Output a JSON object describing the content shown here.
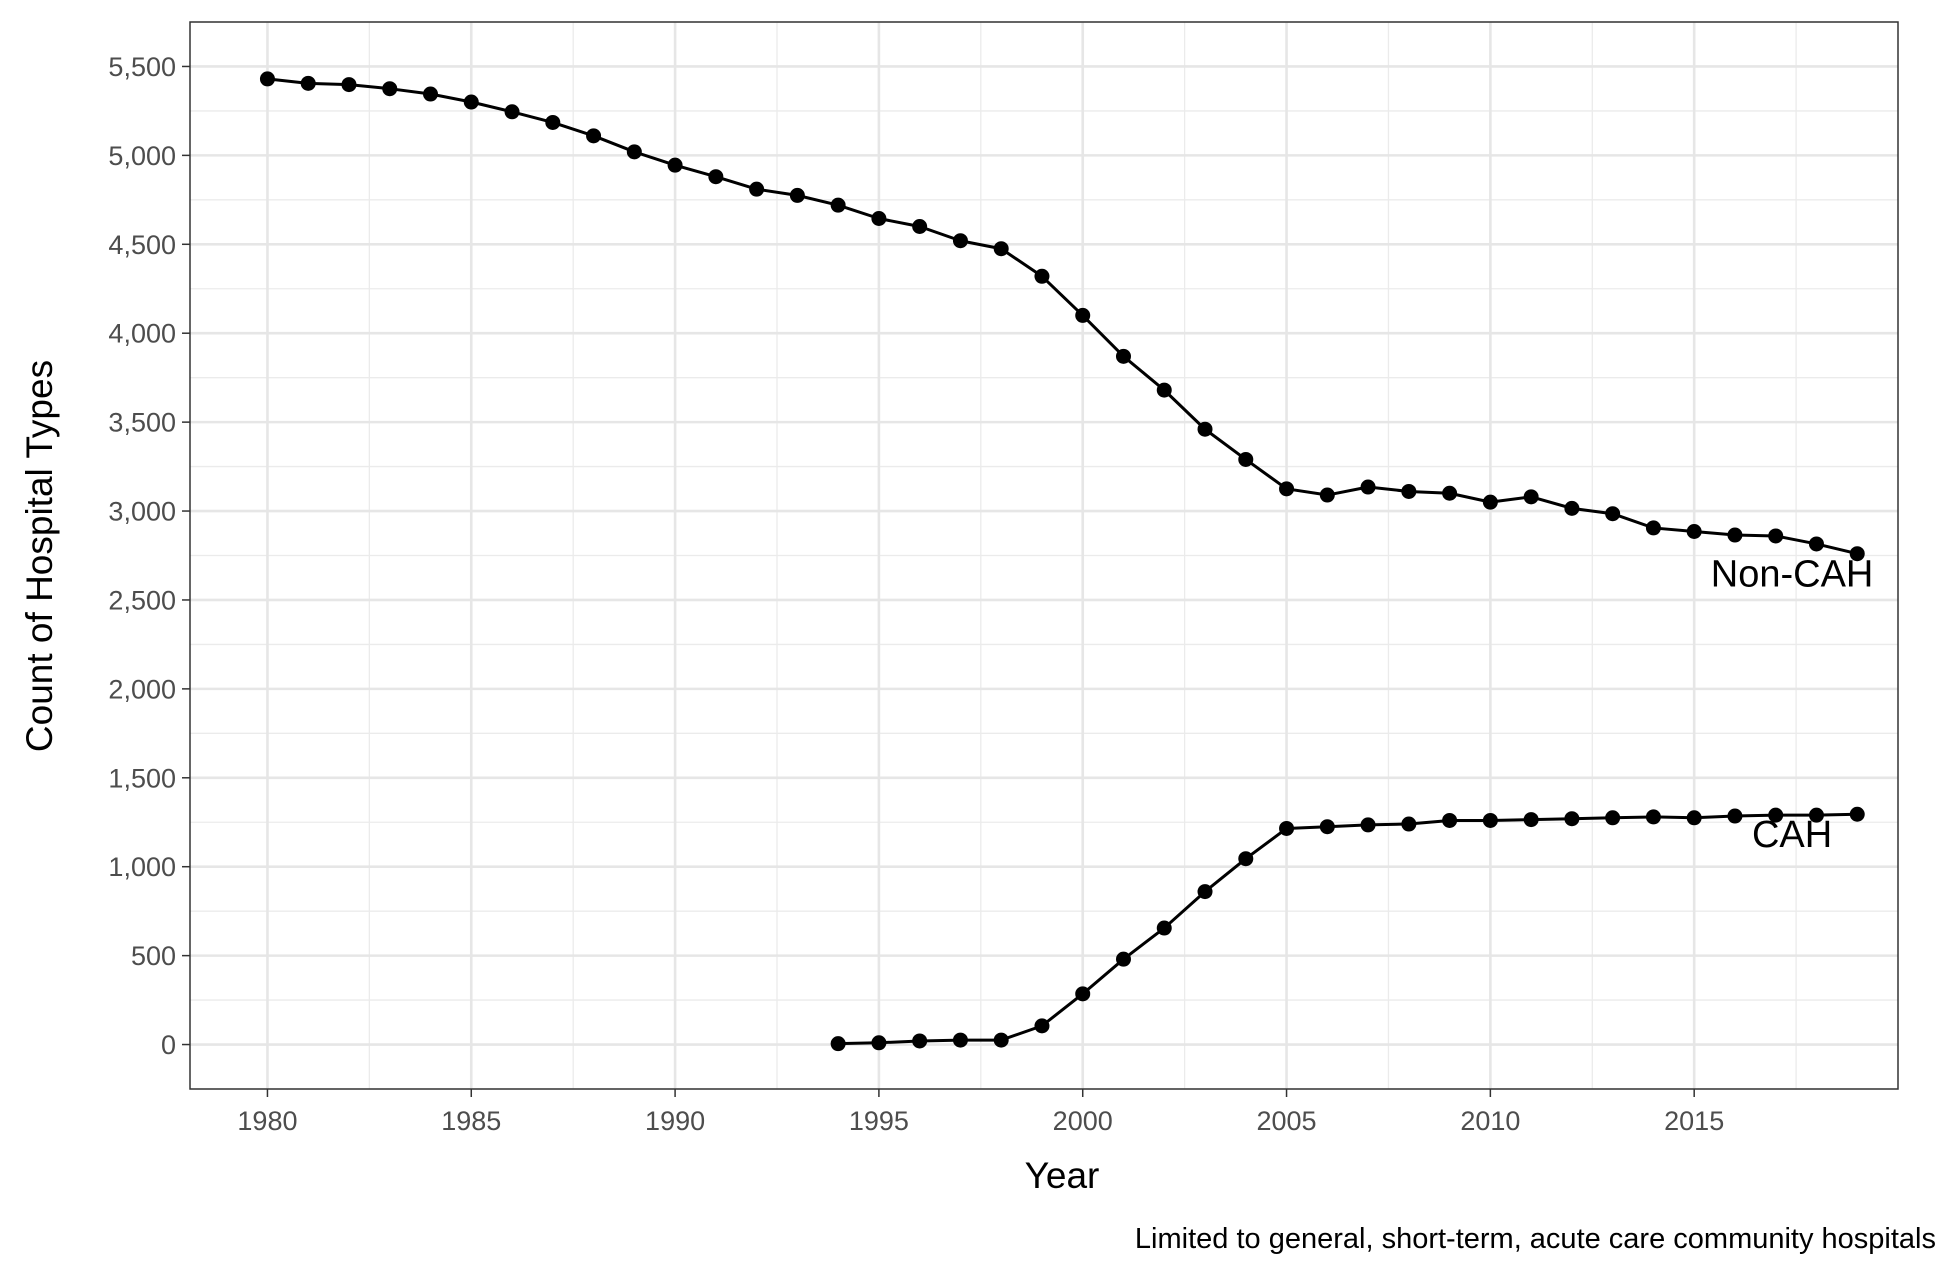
{
  "chart_data": {
    "type": "line",
    "title": "",
    "xlabel": "Year",
    "ylabel": "Count of Hospital Types",
    "caption": "Limited to general, short-term, acute care community hospitals",
    "xlim": [
      1978.1,
      2020.0
    ],
    "ylim": [
      -250,
      5750
    ],
    "x_ticks": [
      1980,
      1985,
      1990,
      1995,
      2000,
      2005,
      2010,
      2015
    ],
    "x_tick_labels": [
      "1980",
      "1985",
      "1990",
      "1995",
      "2000",
      "2005",
      "2010",
      "2015"
    ],
    "y_ticks": [
      0,
      500,
      1000,
      1500,
      2000,
      2500,
      3000,
      3500,
      4000,
      4500,
      5000,
      5500
    ],
    "y_tick_labels": [
      "0",
      "500",
      "1,000",
      "1,500",
      "2,000",
      "2,500",
      "3,000",
      "3,500",
      "4,000",
      "4,500",
      "5,000",
      "5,500"
    ],
    "grid": true,
    "legend": "none",
    "line_color": "#000000",
    "series": [
      {
        "name": "Non-CAH",
        "x": [
          1980,
          1981,
          1982,
          1983,
          1984,
          1985,
          1986,
          1987,
          1988,
          1989,
          1990,
          1991,
          1992,
          1993,
          1994,
          1995,
          1996,
          1997,
          1998,
          1999,
          2000,
          2001,
          2002,
          2003,
          2004,
          2005,
          2006,
          2007,
          2008,
          2009,
          2010,
          2011,
          2012,
          2013,
          2014,
          2015,
          2016,
          2017,
          2018,
          2019
        ],
        "values": [
          5430,
          5405,
          5398,
          5375,
          5345,
          5300,
          5245,
          5185,
          5110,
          5020,
          4945,
          4880,
          4810,
          4775,
          4720,
          4645,
          4600,
          4520,
          4475,
          4320,
          4100,
          3870,
          3680,
          3460,
          3290,
          3125,
          3090,
          3135,
          3110,
          3100,
          3050,
          3080,
          3015,
          2985,
          2905,
          2885,
          2865,
          2860,
          2815,
          2760
        ]
      },
      {
        "name": "CAH",
        "x": [
          1994,
          1995,
          1996,
          1997,
          1998,
          1999,
          2000,
          2001,
          2002,
          2003,
          2004,
          2005,
          2006,
          2007,
          2008,
          2009,
          2010,
          2011,
          2012,
          2013,
          2014,
          2015,
          2016,
          2017,
          2018,
          2019
        ],
        "values": [
          5,
          10,
          20,
          25,
          25,
          105,
          285,
          480,
          655,
          860,
          1045,
          1215,
          1225,
          1235,
          1240,
          1260,
          1260,
          1265,
          1270,
          1275,
          1280,
          1275,
          1285,
          1290,
          1290,
          1295
        ]
      }
    ],
    "annotations": [
      {
        "text": "Non-CAH",
        "series": "Non-CAH"
      },
      {
        "text": "CAH",
        "series": "CAH"
      }
    ]
  }
}
